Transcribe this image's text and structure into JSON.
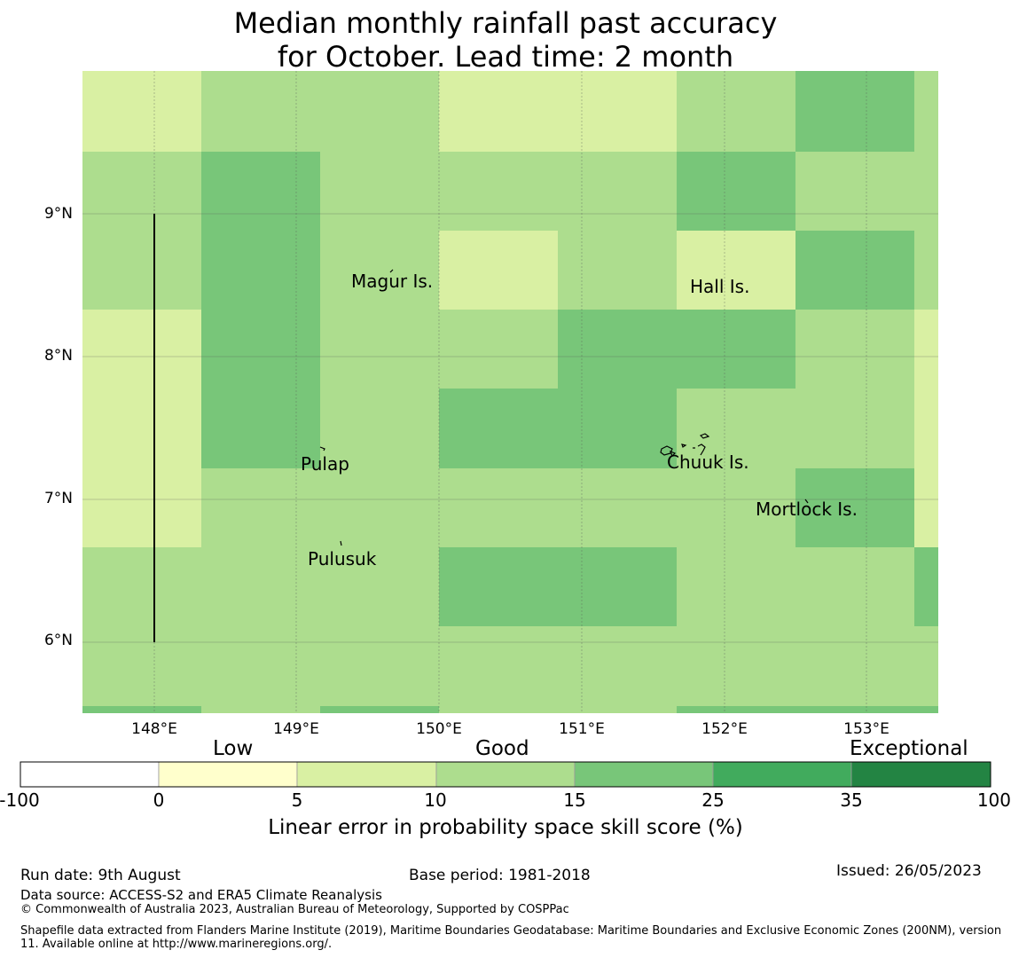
{
  "title": {
    "line1": "Median monthly rainfall past accuracy",
    "line2": "for October. Lead time: 2 month"
  },
  "map": {
    "lat_labels": [
      "9°N",
      "8°N",
      "7°N",
      "6°N"
    ],
    "lon_labels": [
      "148°E",
      "149°E",
      "150°E",
      "151°E",
      "152°E",
      "153°E"
    ],
    "bin_colors": [
      "#ffffff",
      "#ffffcc",
      "#d9f0a3",
      "#addd8e",
      "#78c679",
      "#41ab5d",
      "#238443"
    ],
    "grid_rows": [
      [
        2,
        3,
        3,
        2,
        2,
        3,
        4,
        3
      ],
      [
        3,
        4,
        3,
        3,
        3,
        4,
        3,
        3
      ],
      [
        3,
        4,
        3,
        2,
        3,
        2,
        4,
        3
      ],
      [
        2,
        4,
        3,
        3,
        4,
        4,
        3,
        2
      ],
      [
        2,
        4,
        3,
        4,
        4,
        3,
        3,
        2
      ],
      [
        2,
        3,
        3,
        3,
        3,
        3,
        4,
        2
      ],
      [
        3,
        3,
        3,
        4,
        4,
        3,
        3,
        4
      ],
      [
        3,
        3,
        3,
        3,
        3,
        3,
        3,
        3
      ],
      [
        4,
        3,
        4,
        3,
        3,
        4,
        4,
        4
      ]
    ],
    "places": [
      {
        "name": "Magur Is."
      },
      {
        "name": "Hall Is."
      },
      {
        "name": "Pulap"
      },
      {
        "name": "Chuuk Is."
      },
      {
        "name": "Mortlock Is."
      },
      {
        "name": "Pulusuk"
      }
    ]
  },
  "colorbar": {
    "categories": [
      "Low",
      "Good",
      "Exceptional"
    ],
    "ticks": [
      "-100",
      "0",
      "5",
      "10",
      "15",
      "25",
      "35",
      "100"
    ],
    "colors": [
      "#ffffff",
      "#ffffcc",
      "#d9f0a3",
      "#addd8e",
      "#78c679",
      "#41ab5d",
      "#238443"
    ],
    "axis_label": "Linear error in probability space skill score (%)"
  },
  "footer": {
    "run_date": "Run date: 9th August",
    "base_period": "Base period: 1981-2018",
    "issued": "Issued: 26/05/2023",
    "data_source": "Data source: ACCESS-S2 and ERA5 Climate Reanalysis",
    "copyright": "© Commonwealth of Australia 2023, Australian Bureau of Meteorology, Supported by COSPPac",
    "shapefile": "Shapefile data extracted from Flanders Marine Institute (2019), Maritime Boundaries Geodatabase: Maritime Boundaries and Exclusive Economic Zones (200NM), version 11. Available online at http://www.marineregions.org/."
  }
}
